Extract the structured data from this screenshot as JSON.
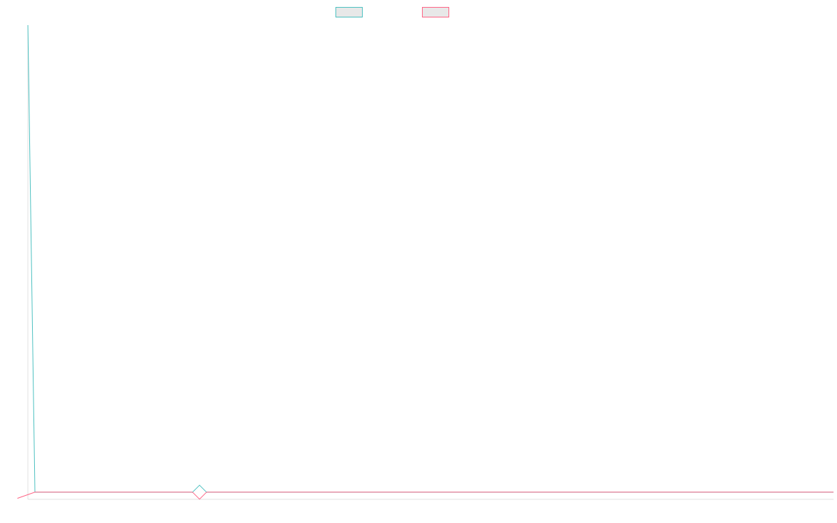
{
  "chart_data": {
    "type": "line",
    "title": "",
    "xlabel": "",
    "ylabel": "",
    "legend": {
      "placement": "top-center",
      "entries": [
        {
          "color": "#4bc0c0",
          "fill": "#e8e8e8"
        },
        {
          "color": "#ff6384",
          "fill": "#e8e8e8"
        }
      ]
    },
    "grid": false,
    "xlim": [
      0,
      115
    ],
    "ylim": [
      0,
      100
    ],
    "series": [
      {
        "color": "#4bc0c0",
        "points": [
          [
            0,
            100
          ],
          [
            1,
            1.5
          ],
          [
            115,
            1.5
          ]
        ]
      },
      {
        "color": "#ff6384",
        "points": [
          [
            -1.5,
            0.2
          ],
          [
            1,
            1.5
          ],
          [
            115,
            1.5
          ]
        ]
      }
    ],
    "marker": {
      "shape": "diamond",
      "x": 24.5,
      "y": 1.5,
      "colors": [
        "#4bc0c0",
        "#ff6384"
      ]
    }
  }
}
